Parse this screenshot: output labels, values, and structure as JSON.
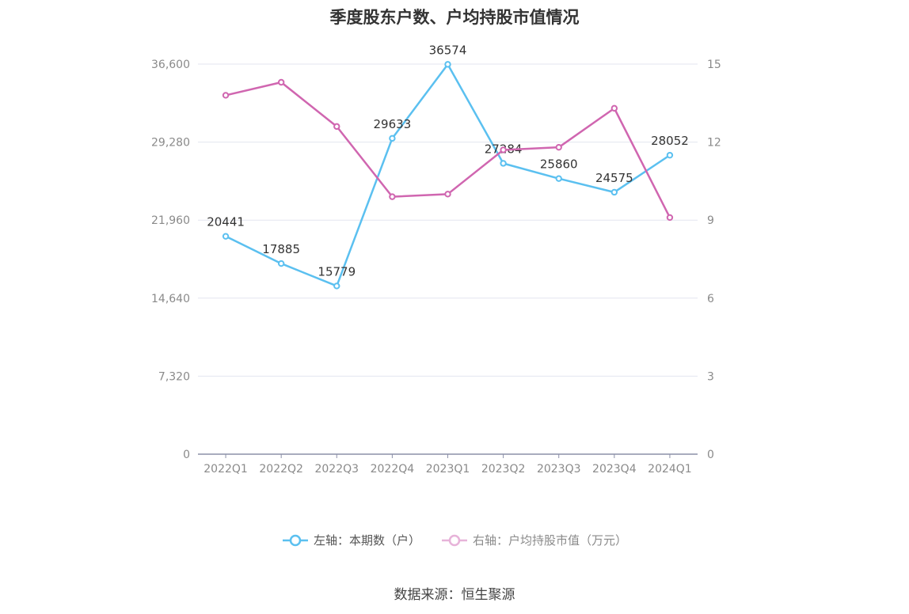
{
  "title": "季度股东户数、户均持股市值情况",
  "source": "数据来源：恒生聚源",
  "colors": {
    "left_series": "#5bc0f0",
    "right_series": "#d066b0",
    "grid": "#e3e6ef",
    "axis": "#8c90a8"
  },
  "chart_data": {
    "type": "line",
    "categories": [
      "2022Q1",
      "2022Q2",
      "2022Q3",
      "2022Q4",
      "2023Q1",
      "2023Q2",
      "2023Q3",
      "2023Q4",
      "2024Q1"
    ],
    "left_axis": {
      "ylim": [
        0,
        36600
      ],
      "ticks": [
        "0",
        "7,320",
        "14,640",
        "21,960",
        "29,280",
        "36,600"
      ],
      "tick_values": [
        0,
        7320,
        14640,
        21960,
        29280,
        36600
      ]
    },
    "right_axis": {
      "ylim": [
        0,
        15
      ],
      "ticks": [
        "0",
        "3",
        "6",
        "9",
        "12",
        "15"
      ],
      "tick_values": [
        0,
        3,
        6,
        9,
        12,
        15
      ]
    },
    "series": [
      {
        "name": "左轴：本期数（户）",
        "axis": "left",
        "values": [
          20441,
          17885,
          15779,
          29633,
          36574,
          27284,
          25860,
          24575,
          28052
        ],
        "labels": [
          "20441",
          "17885",
          "15779",
          "29633",
          "36574",
          "27284",
          "25860",
          "24575",
          "28052"
        ]
      },
      {
        "name": "右轴：户均持股市值（万元）",
        "axis": "right",
        "values": [
          13.8,
          14.3,
          12.6,
          9.9,
          10.0,
          11.7,
          11.8,
          13.3,
          9.1
        ]
      }
    ],
    "grid": true,
    "legend_position": "bottom"
  }
}
